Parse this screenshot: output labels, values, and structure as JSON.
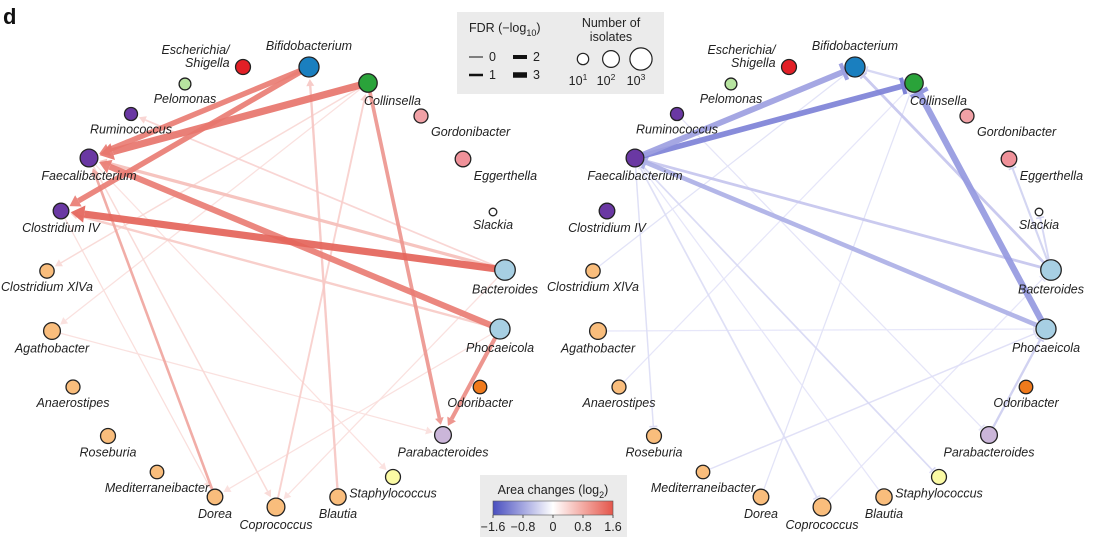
{
  "panel_label": "d",
  "colors": {
    "gold": "#f9bd7c",
    "purple": "#6a38a3",
    "red": "#e21f26",
    "blue": "#1a7fbf",
    "green": "#2aa33a",
    "pink": "#f1a1a6",
    "pink_dark": "#ef9199",
    "lightgreen": "#b7e4a0",
    "lightblue": "#a7cfe3",
    "lavender": "#cbb6d9",
    "orange": "#f07a1c",
    "yellow": "#fbfaa4",
    "white": "#ffffff",
    "pos_edge": "#e8786c",
    "neg_edge": "#8a8fd6"
  },
  "nodes": [
    {
      "id": "escherichia",
      "label": "Escherichia/\nShigella",
      "color": "red",
      "isolates": 45
    },
    {
      "id": "bifidobacterium",
      "label": "Bifidobacterium",
      "color": "blue",
      "isolates": 400
    },
    {
      "id": "pelomonas",
      "label": "Pelomonas",
      "color": "lightgreen",
      "isolates": 12
    },
    {
      "id": "collinsella",
      "label": "Collinsella",
      "color": "green",
      "isolates": 200
    },
    {
      "id": "ruminococcus",
      "label": "Ruminococcus",
      "color": "purple",
      "isolates": 20
    },
    {
      "id": "gordonibacter",
      "label": "Gordonibacter",
      "color": "pink",
      "isolates": 30
    },
    {
      "id": "faecalibacterium",
      "label": "Faecalibacterium",
      "color": "purple",
      "isolates": 150
    },
    {
      "id": "eggerthella",
      "label": "Eggerthella",
      "color": "pink_dark",
      "isolates": 60
    },
    {
      "id": "slackia",
      "label": "Slackia",
      "color": "white",
      "isolates": 2
    },
    {
      "id": "clostridium_iv",
      "label": "Clostridium IV",
      "color": "purple",
      "isolates": 60
    },
    {
      "id": "bacteroides",
      "label": "Bacteroides",
      "color": "lightblue",
      "isolates": 500
    },
    {
      "id": "clostridium_xlva",
      "label": "Clostridium XlVa",
      "color": "gold",
      "isolates": 35
    },
    {
      "id": "phocaeicola",
      "label": "Phocaeicola",
      "color": "lightblue",
      "isolates": 400
    },
    {
      "id": "agathobacter",
      "label": "Agathobacter",
      "color": "gold",
      "isolates": 100
    },
    {
      "id": "odoribacter",
      "label": "Odoribacter",
      "color": "orange",
      "isolates": 25
    },
    {
      "id": "anaerostipes",
      "label": "Anaerostipes",
      "color": "gold",
      "isolates": 30
    },
    {
      "id": "parabacteroides",
      "label": "Parabacteroides",
      "color": "lavender",
      "isolates": 100
    },
    {
      "id": "roseburia",
      "label": "Roseburia",
      "color": "gold",
      "isolates": 45
    },
    {
      "id": "staphylococcus",
      "label": "Staphylococcus",
      "color": "yellow",
      "isolates": 45
    },
    {
      "id": "mediterraneibacter",
      "label": "Mediterraneibacter",
      "color": "gold",
      "isolates": 25
    },
    {
      "id": "dorea",
      "label": "Dorea",
      "color": "gold",
      "isolates": 60
    },
    {
      "id": "blautia",
      "label": "Blautia",
      "color": "gold",
      "isolates": 80
    },
    {
      "id": "coprococcus",
      "label": "Coprococcus",
      "color": "gold",
      "isolates": 150
    }
  ],
  "panels": [
    {
      "name": "left",
      "edges": [
        {
          "from": "bacteroides",
          "to": "clostridium_iv",
          "fdr": 3,
          "change": 1.6
        },
        {
          "from": "collinsella",
          "to": "faecalibacterium",
          "fdr": 3,
          "change": 1.4
        },
        {
          "from": "bifidobacterium",
          "to": "faecalibacterium",
          "fdr": 2.2,
          "change": 1.3
        },
        {
          "from": "bifidobacterium",
          "to": "clostridium_iv",
          "fdr": 2.2,
          "change": 1.3
        },
        {
          "from": "phocaeicola",
          "to": "faecalibacterium",
          "fdr": 2.5,
          "change": 1.3
        },
        {
          "from": "phocaeicola",
          "to": "parabacteroides",
          "fdr": 1.6,
          "change": 1.1
        },
        {
          "from": "collinsella",
          "to": "parabacteroides",
          "fdr": 1.4,
          "change": 1.0
        },
        {
          "from": "bacteroides",
          "to": "faecalibacterium",
          "fdr": 1.2,
          "change": 0.5
        },
        {
          "from": "dorea",
          "to": "faecalibacterium",
          "fdr": 0.9,
          "change": 0.8
        },
        {
          "from": "blautia",
          "to": "bifidobacterium",
          "fdr": 0.8,
          "change": 0.4
        },
        {
          "from": "coprococcus",
          "to": "collinsella",
          "fdr": 0.6,
          "change": 0.3
        },
        {
          "from": "phocaeicola",
          "to": "clostridium_iv",
          "fdr": 0.8,
          "change": 0.35
        },
        {
          "from": "bacteroides",
          "to": "ruminococcus",
          "fdr": 0.5,
          "change": 0.25
        },
        {
          "from": "collinsella",
          "to": "clostridium_xlva",
          "fdr": 0.4,
          "change": 0.2
        },
        {
          "from": "faecalibacterium",
          "to": "coprococcus",
          "fdr": 0.4,
          "change": 0.2
        },
        {
          "from": "clostridium_iv",
          "to": "dorea",
          "fdr": 0.3,
          "change": 0.15
        },
        {
          "from": "agathobacter",
          "to": "parabacteroides",
          "fdr": 0.3,
          "change": 0.12
        },
        {
          "from": "collinsella",
          "to": "agathobacter",
          "fdr": 0.3,
          "change": 0.12
        },
        {
          "from": "phocaeicola",
          "to": "dorea",
          "fdr": 0.3,
          "change": 0.12
        },
        {
          "from": "bacteroides",
          "to": "coprococcus",
          "fdr": 0.3,
          "change": 0.12
        },
        {
          "from": "faecalibacterium",
          "to": "staphylococcus",
          "fdr": 0.3,
          "change": 0.1
        }
      ]
    },
    {
      "name": "right",
      "edges": [
        {
          "from": "phocaeicola",
          "to": "collinsella",
          "fdr": 2.6,
          "change": -1.1
        },
        {
          "from": "faecalibacterium",
          "to": "bifidobacterium",
          "fdr": 2.4,
          "change": -1.0
        },
        {
          "from": "faecalibacterium",
          "to": "collinsella",
          "fdr": 2.3,
          "change": -1.4
        },
        {
          "from": "phocaeicola",
          "to": "faecalibacterium",
          "fdr": 1.8,
          "change": -0.8
        },
        {
          "from": "bacteroides",
          "to": "faecalibacterium",
          "fdr": 1.0,
          "change": -0.5
        },
        {
          "from": "bacteroides",
          "to": "bifidobacterium",
          "fdr": 1.0,
          "change": -0.5
        },
        {
          "from": "parabacteroides",
          "to": "phocaeicola",
          "fdr": 0.8,
          "change": -0.4
        },
        {
          "from": "bacteroides",
          "to": "eggerthella",
          "fdr": 0.7,
          "change": -0.35
        },
        {
          "from": "bacteroides",
          "to": "slackia",
          "fdr": 0.6,
          "change": -0.3
        },
        {
          "from": "collinsella",
          "to": "bifidobacterium",
          "fdr": 0.8,
          "change": -0.3
        },
        {
          "from": "faecalibacterium",
          "to": "staphylococcus",
          "fdr": 0.5,
          "change": -0.25
        },
        {
          "from": "faecalibacterium",
          "to": "coprococcus",
          "fdr": 0.5,
          "change": -0.2
        },
        {
          "from": "faecalibacterium",
          "to": "roseburia",
          "fdr": 0.4,
          "change": -0.2
        },
        {
          "from": "mediterraneibacter",
          "to": "phocaeicola",
          "fdr": 0.4,
          "change": -0.18
        },
        {
          "from": "clostridium_xlva",
          "to": "bifidobacterium",
          "fdr": 0.3,
          "change": -0.15
        },
        {
          "from": "dorea",
          "to": "collinsella",
          "fdr": 0.3,
          "change": -0.15
        },
        {
          "from": "ruminococcus",
          "to": "parabacteroides",
          "fdr": 0.3,
          "change": -0.12
        },
        {
          "from": "agathobacter",
          "to": "phocaeicola",
          "fdr": 0.3,
          "change": -0.1
        },
        {
          "from": "blautia",
          "to": "faecalibacterium",
          "fdr": 0.3,
          "change": -0.1
        },
        {
          "from": "coprococcus",
          "to": "bacteroides",
          "fdr": 0.3,
          "change": -0.1
        },
        {
          "from": "anaerostipes",
          "to": "collinsella",
          "fdr": 0.3,
          "change": -0.1
        }
      ]
    }
  ],
  "legend": {
    "fdr_title": "FDR (−log",
    "fdr_title_sub": "10",
    "fdr_title_end": ")",
    "fdr_levels": [
      {
        "label": "0",
        "value": 0
      },
      {
        "label": "2",
        "value": 2
      },
      {
        "label": "1",
        "value": 1
      },
      {
        "label": "3",
        "value": 3
      }
    ],
    "isolates_title_1": "Number of",
    "isolates_title_2": "isolates",
    "isolates_levels": [
      {
        "base": "10",
        "exp": "1",
        "value": 10
      },
      {
        "base": "10",
        "exp": "2",
        "value": 100
      },
      {
        "base": "10",
        "exp": "3",
        "value": 1000
      }
    ],
    "colorbar_title": "Area changes (log",
    "colorbar_title_sub": "2",
    "colorbar_title_end": ")",
    "colorbar_ticks": [
      "−1.6",
      "−0.8",
      "0",
      "0.8",
      "1.6"
    ],
    "colorbar_range": [
      -1.6,
      1.6
    ]
  }
}
